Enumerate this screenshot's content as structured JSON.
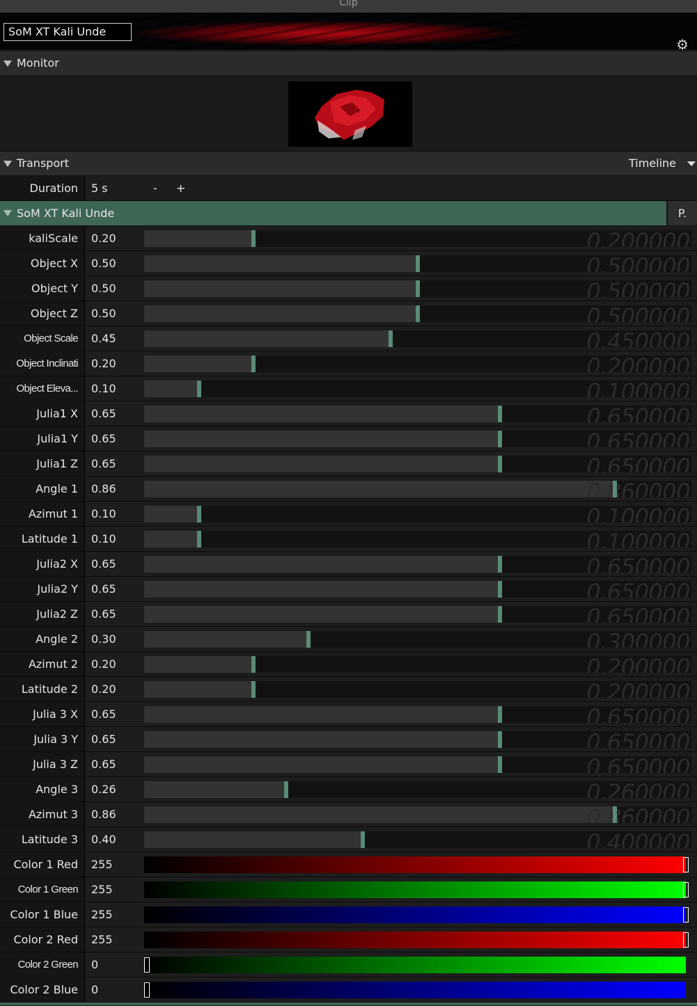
{
  "window": {
    "title": "Clip"
  },
  "clip": {
    "name": "SoM XT Kali Unde"
  },
  "monitor": {
    "label": "Monitor"
  },
  "transport": {
    "label": "Transport",
    "mode": "Timeline",
    "duration_label": "Duration",
    "duration_value": "5 s",
    "minus": "-",
    "plus": "+"
  },
  "layer": {
    "name": "SoM XT Kali Unde",
    "button": "P."
  },
  "params": [
    {
      "name": "kaliScale",
      "value": "0.20",
      "ghost": "0.200000",
      "level": 0.2
    },
    {
      "name": "Object X",
      "value": "0.50",
      "ghost": "0.500000",
      "level": 0.5
    },
    {
      "name": "Object Y",
      "value": "0.50",
      "ghost": "0.500000",
      "level": 0.5
    },
    {
      "name": "Object Z",
      "value": "0.50",
      "ghost": "0.500000",
      "level": 0.5
    },
    {
      "name": "Object Scale",
      "value": "0.45",
      "ghost": "0.450000",
      "level": 0.45,
      "narrow": true
    },
    {
      "name": "Object Inclinati",
      "value": "0.20",
      "ghost": "0.200000",
      "level": 0.2,
      "narrow": true
    },
    {
      "name": "Object Eleva...",
      "value": "0.10",
      "ghost": "0.100000",
      "level": 0.1,
      "narrow": true
    },
    {
      "name": "Julia1 X",
      "value": "0.65",
      "ghost": "0.650000",
      "level": 0.65
    },
    {
      "name": "Julia1 Y",
      "value": "0.65",
      "ghost": "0.650000",
      "level": 0.65
    },
    {
      "name": "Julia1 Z",
      "value": "0.65",
      "ghost": "0.650000",
      "level": 0.65
    },
    {
      "name": "Angle 1",
      "value": "0.86",
      "ghost": "0.860000",
      "level": 0.86
    },
    {
      "name": "Azimut 1",
      "value": "0.10",
      "ghost": "0.100000",
      "level": 0.1
    },
    {
      "name": "Latitude 1",
      "value": "0.10",
      "ghost": "0.100000",
      "level": 0.1
    },
    {
      "name": "Julia2 X",
      "value": "0.65",
      "ghost": "0.650000",
      "level": 0.65
    },
    {
      "name": "Julia2 Y",
      "value": "0.65",
      "ghost": "0.650000",
      "level": 0.65
    },
    {
      "name": "Julia2 Z",
      "value": "0.65",
      "ghost": "0.650000",
      "level": 0.65
    },
    {
      "name": "Angle 2",
      "value": "0.30",
      "ghost": "0.300000",
      "level": 0.3
    },
    {
      "name": "Azimut 2",
      "value": "0.20",
      "ghost": "0.200000",
      "level": 0.2
    },
    {
      "name": "Latitude 2",
      "value": "0.20",
      "ghost": "0.200000",
      "level": 0.2
    },
    {
      "name": "Julia 3 X",
      "value": "0.65",
      "ghost": "0.650000",
      "level": 0.65
    },
    {
      "name": "Julia 3 Y",
      "value": "0.65",
      "ghost": "0.650000",
      "level": 0.65
    },
    {
      "name": "Julia 3 Z",
      "value": "0.65",
      "ghost": "0.650000",
      "level": 0.65
    },
    {
      "name": "Angle 3",
      "value": "0.26",
      "ghost": "0.260000",
      "level": 0.26
    },
    {
      "name": "Azimut 3",
      "value": "0.86",
      "ghost": "0.860000",
      "level": 0.86
    },
    {
      "name": "Latitude 3",
      "value": "0.40",
      "ghost": "0.400000",
      "level": 0.4
    }
  ],
  "colors": [
    {
      "name": "Color 1 Red",
      "value": "255",
      "level": 1.0,
      "color": "#ff0000"
    },
    {
      "name": "Color 1 Green",
      "value": "255",
      "level": 1.0,
      "color": "#00ff00",
      "narrow": true
    },
    {
      "name": "Color 1 Blue",
      "value": "255",
      "level": 1.0,
      "color": "#0000ff"
    },
    {
      "name": "Color 2 Red",
      "value": "255",
      "level": 1.0,
      "color": "#ff0000"
    },
    {
      "name": "Color 2 Green",
      "value": "0",
      "level": 0.0,
      "color": "#00ff00",
      "narrow": true
    },
    {
      "name": "Color 2 Blue",
      "value": "0",
      "level": 0.0,
      "color": "#0000ff"
    }
  ],
  "theme": {
    "accent": "#3d6655",
    "handle": "#5a8b76"
  },
  "icons": {
    "settings": "gear-icon",
    "collapse": "triangle-down-icon"
  }
}
